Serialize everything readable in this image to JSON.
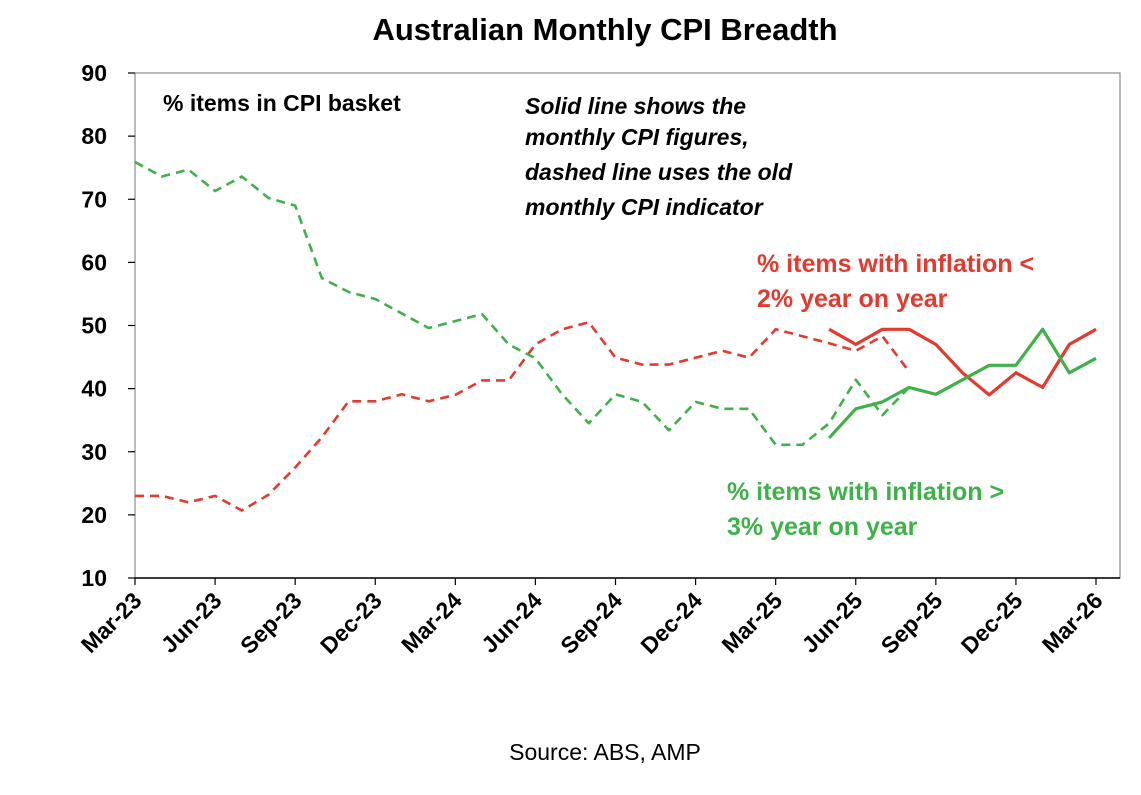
{
  "chart_data": {
    "type": "line",
    "title": "Australian Monthly CPI Breadth",
    "ylim": [
      10,
      90
    ],
    "yticks": [
      10,
      20,
      30,
      40,
      50,
      60,
      70,
      80,
      90
    ],
    "xlabels": [
      "Mar-23",
      "Jun-23",
      "Sep-23",
      "Dec-23",
      "Mar-24",
      "Jun-24",
      "Sep-24",
      "Dec-24",
      "Mar-25",
      "Jun-25",
      "Sep-25",
      "Dec-25",
      "Mar-26"
    ],
    "x_start": "Mar-23",
    "x_months": 36,
    "annotations": {
      "basket_label": "% items in CPI basket",
      "note_lines": [
        "Solid line shows the",
        "monthly CPI figures,",
        "dashed line uses the old",
        "monthly CPI indicator"
      ],
      "red_label_lines": [
        "% items with inflation <",
        "2% year on year"
      ],
      "green_label_lines": [
        "% items with inflation >",
        "3% year on year"
      ]
    },
    "colors": {
      "red": "#e23a2f",
      "green": "#3fb04a"
    },
    "series": [
      {
        "name": "% items with inflation < 2% year on year (old monthly CPI indicator)",
        "style": "dashed",
        "color": "red",
        "start_month": 0,
        "values": [
          23,
          23,
          22,
          23,
          20.7,
          23.2,
          27.5,
          32.3,
          38,
          38,
          39.1,
          38,
          39,
          41.3,
          41.3,
          47,
          49.4,
          50.5,
          44.9,
          43.8,
          43.8,
          44.9,
          46,
          44.9,
          49.4,
          48.3,
          47.2,
          46,
          48.3,
          42.7
        ]
      },
      {
        "name": "% items with inflation > 3% year on year (old monthly CPI indicator)",
        "style": "dashed",
        "color": "green",
        "start_month": 0,
        "values": [
          75.9,
          73.6,
          74.7,
          71.3,
          73.6,
          70.2,
          69,
          57.5,
          55.3,
          54.2,
          51.9,
          49.6,
          50.7,
          51.8,
          47,
          44.8,
          39.1,
          34.5,
          39.1,
          37.9,
          33.4,
          37.9,
          36.8,
          36.8,
          31.1,
          31.1,
          34.5,
          41.4,
          35.8,
          40.2
        ]
      },
      {
        "name": "% items with inflation < 2% year on year (monthly CPI)",
        "style": "solid",
        "color": "red",
        "start_month": 26,
        "values": [
          49.4,
          47,
          49.4,
          49.4,
          47,
          42.5,
          39,
          42.5,
          40.2,
          47,
          49.4
        ]
      },
      {
        "name": "% items with inflation > 3% year on year (monthly CPI)",
        "style": "solid",
        "color": "green",
        "start_month": 26,
        "values": [
          32.2,
          36.8,
          37.9,
          40.2,
          39.1,
          41.4,
          43.7,
          43.7,
          49.4,
          42.5,
          44.8
        ]
      }
    ]
  },
  "source": "Source: ABS, AMP"
}
